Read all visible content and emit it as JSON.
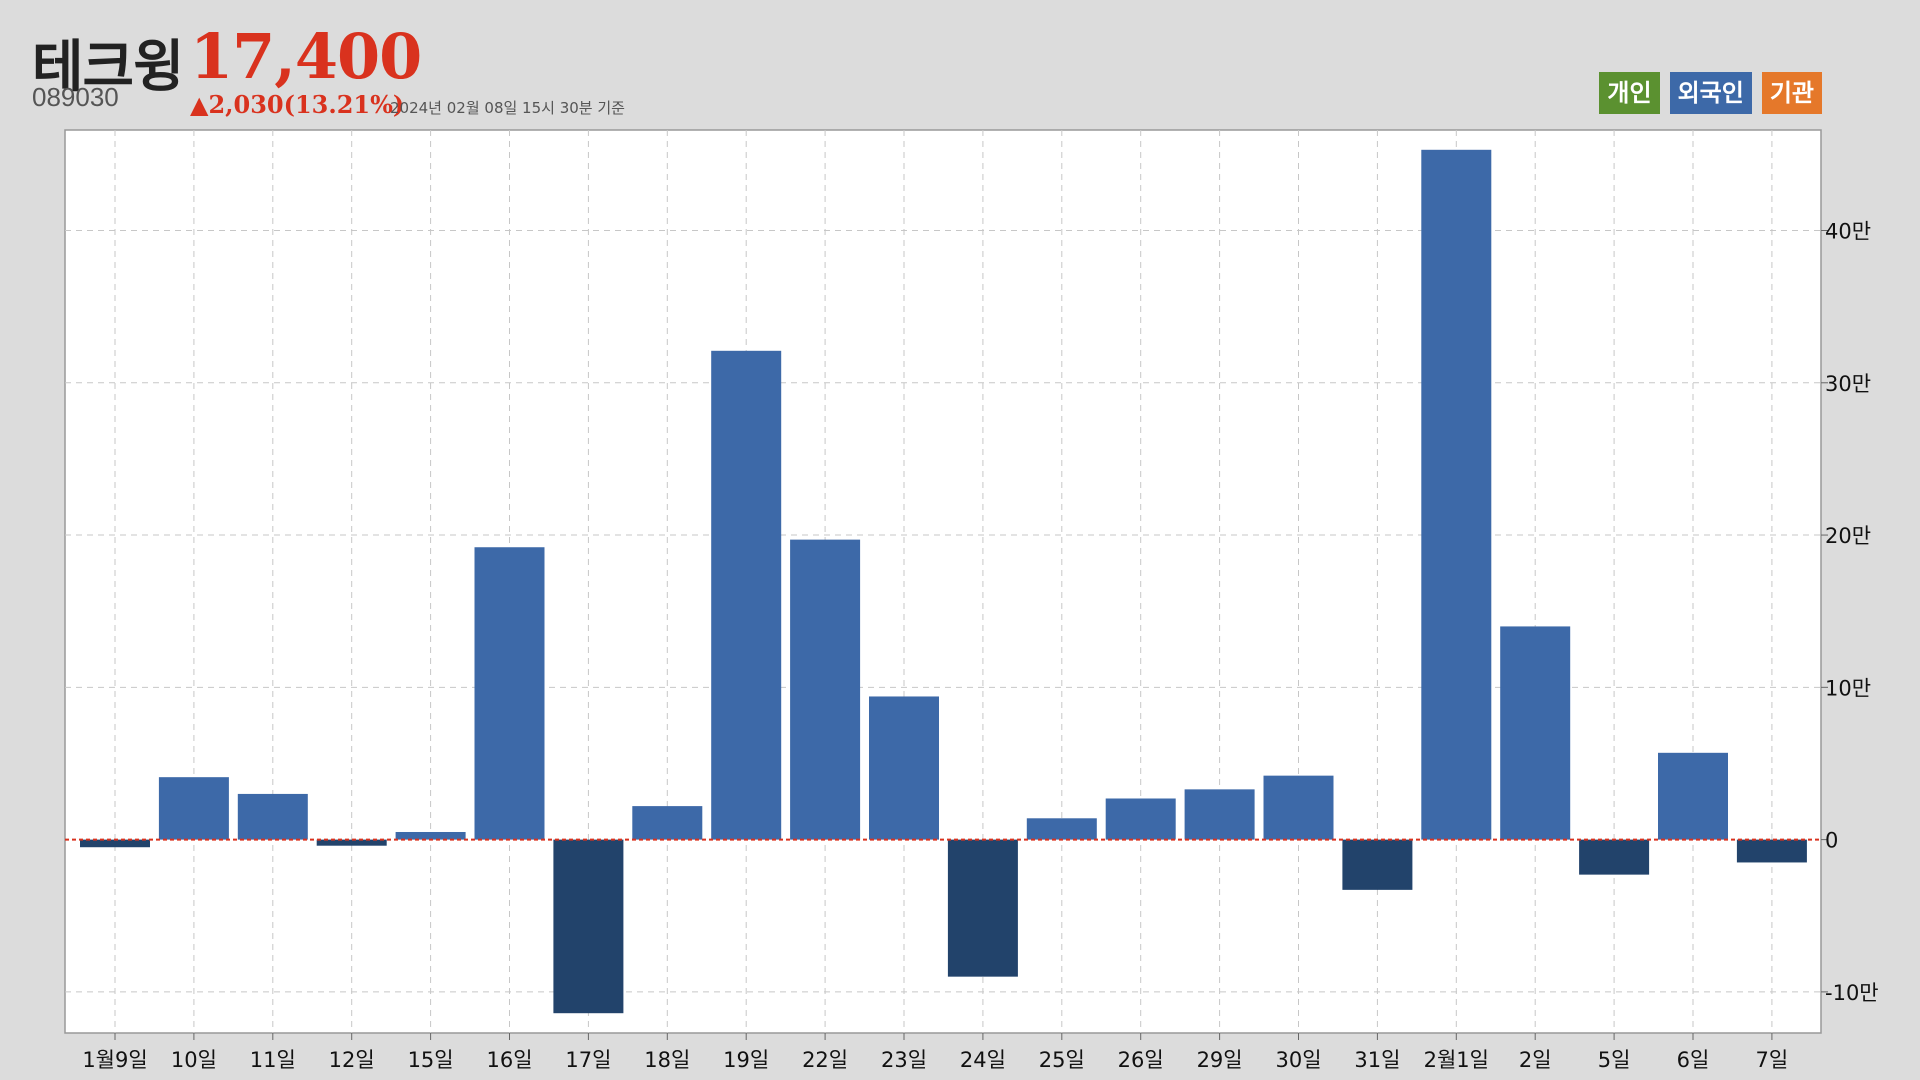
{
  "header": {
    "name": "테크윙",
    "price": "17,400",
    "code": "089030",
    "change": "▲2,030(13.21%)",
    "asof": "2024년 02월 08일 15시 30분 기준"
  },
  "legend": [
    {
      "label": "개인",
      "color": "#5b9130"
    },
    {
      "label": "외국인",
      "color": "#3d69a8"
    },
    {
      "label": "기관",
      "color": "#e5782a"
    }
  ],
  "colors": {
    "positive": "#3d69a8",
    "negative": "#22436b",
    "zeroline": "#d9321e",
    "plot_bg": "#ffffff",
    "grid": "#c7c7c7"
  },
  "chart_data": {
    "type": "bar",
    "series": [
      {
        "name": "외국인",
        "values": [
          -5000,
          41000,
          30000,
          -4000,
          5000,
          192000,
          -114000,
          22000,
          321000,
          197000,
          94000,
          -90000,
          14000,
          27000,
          33000,
          42000,
          -33000,
          453000,
          140000,
          -23000,
          57000,
          -15000
        ]
      }
    ],
    "categories": [
      "1월9일",
      "10일",
      "11일",
      "12일",
      "15일",
      "16일",
      "17일",
      "18일",
      "19일",
      "22일",
      "23일",
      "24일",
      "25일",
      "26일",
      "29일",
      "30일",
      "31일",
      "2월1일",
      "2일",
      "5일",
      "6일",
      "7일"
    ],
    "ylim": [
      -127000,
      466000
    ],
    "yticks": [
      -100000,
      0,
      100000,
      200000,
      300000,
      400000
    ],
    "ytick_labels": [
      "-10만",
      "0",
      "10만",
      "20만",
      "30만",
      "40만"
    ],
    "y_axis_side": "right",
    "grid": true
  }
}
